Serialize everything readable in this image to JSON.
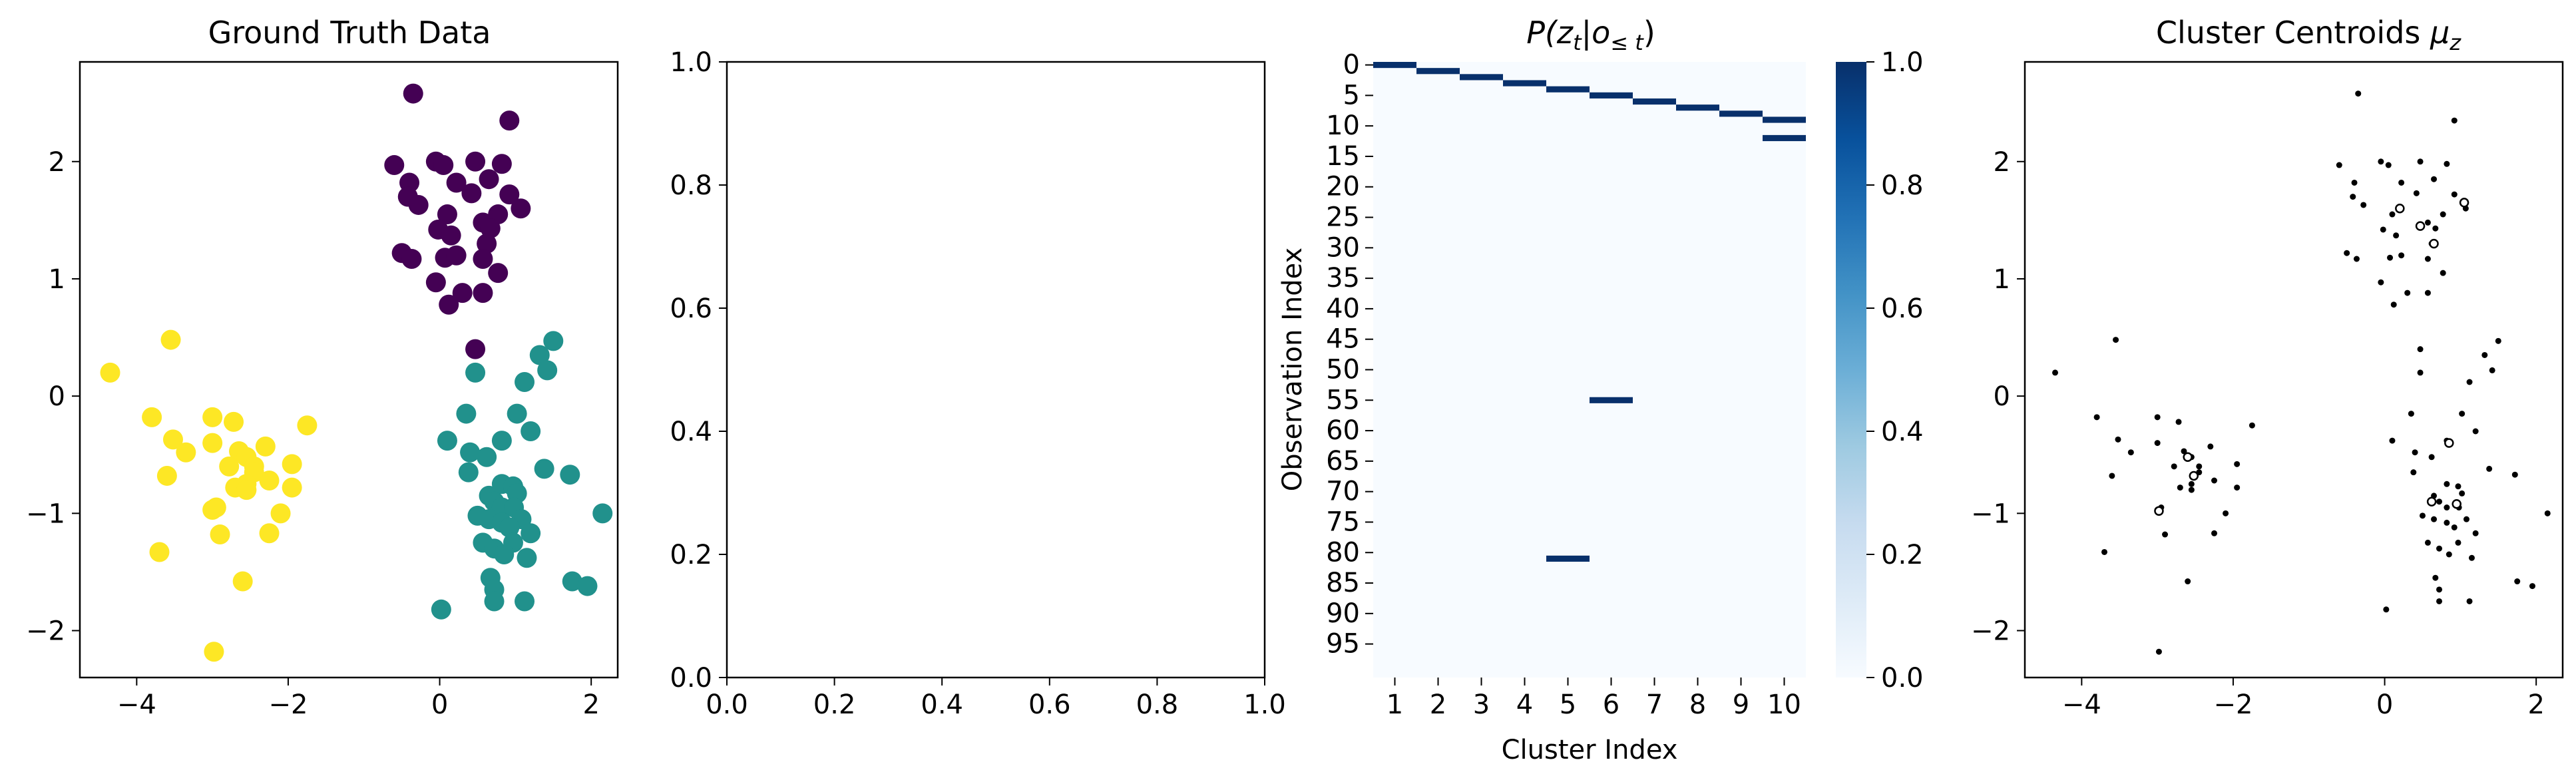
{
  "figure": {
    "background": "#ffffff"
  },
  "chart_data": [
    {
      "type": "scatter",
      "title": "Ground Truth Data",
      "xlabel": "",
      "ylabel": "",
      "xlim": [
        -4.75,
        2.35
      ],
      "ylim": [
        -2.4,
        2.85
      ],
      "xticks": [
        -4,
        -2,
        0,
        2
      ],
      "xtick_labels": [
        "−4",
        "−2",
        "0",
        "2"
      ],
      "yticks": [
        -2,
        -1,
        0,
        1,
        2
      ],
      "ytick_labels": [
        "−2",
        "−1",
        "0",
        "1",
        "2"
      ],
      "grid": false,
      "series": [
        {
          "color": "#440154",
          "points": [
            [
              -0.35,
              2.58
            ],
            [
              0.92,
              2.35
            ],
            [
              -0.6,
              1.97
            ],
            [
              -0.05,
              2.0
            ],
            [
              0.05,
              1.97
            ],
            [
              0.47,
              2.0
            ],
            [
              0.82,
              1.98
            ],
            [
              -0.4,
              1.82
            ],
            [
              0.22,
              1.82
            ],
            [
              0.65,
              1.85
            ],
            [
              -0.42,
              1.7
            ],
            [
              -0.28,
              1.63
            ],
            [
              0.42,
              1.73
            ],
            [
              0.92,
              1.72
            ],
            [
              0.1,
              1.55
            ],
            [
              0.77,
              1.55
            ],
            [
              1.07,
              1.6
            ],
            [
              0.57,
              1.48
            ],
            [
              0.67,
              1.43
            ],
            [
              -0.02,
              1.42
            ],
            [
              0.15,
              1.37
            ],
            [
              0.62,
              1.3
            ],
            [
              -0.5,
              1.22
            ],
            [
              -0.37,
              1.17
            ],
            [
              0.07,
              1.18
            ],
            [
              0.22,
              1.2
            ],
            [
              0.57,
              1.17
            ],
            [
              0.77,
              1.05
            ],
            [
              -0.05,
              0.97
            ],
            [
              0.3,
              0.88
            ],
            [
              0.57,
              0.88
            ],
            [
              0.12,
              0.78
            ],
            [
              0.47,
              0.4
            ]
          ]
        },
        {
          "color": "#21918c",
          "points": [
            [
              1.5,
              0.47
            ],
            [
              1.32,
              0.35
            ],
            [
              1.42,
              0.22
            ],
            [
              0.47,
              0.2
            ],
            [
              1.12,
              0.12
            ],
            [
              0.35,
              -0.15
            ],
            [
              1.02,
              -0.15
            ],
            [
              1.2,
              -0.3
            ],
            [
              0.1,
              -0.38
            ],
            [
              0.82,
              -0.38
            ],
            [
              0.4,
              -0.48
            ],
            [
              0.62,
              -0.52
            ],
            [
              1.38,
              -0.62
            ],
            [
              1.72,
              -0.67
            ],
            [
              0.38,
              -0.65
            ],
            [
              0.82,
              -0.75
            ],
            [
              0.97,
              -0.77
            ],
            [
              0.65,
              -0.85
            ],
            [
              1.02,
              -0.83
            ],
            [
              0.72,
              -0.9
            ],
            [
              0.82,
              -0.95
            ],
            [
              2.15,
              -1.0
            ],
            [
              0.98,
              -0.95
            ],
            [
              0.5,
              -1.02
            ],
            [
              0.65,
              -1.05
            ],
            [
              1.08,
              -1.05
            ],
            [
              0.82,
              -1.08
            ],
            [
              0.92,
              -1.12
            ],
            [
              0.57,
              -1.25
            ],
            [
              1.2,
              -1.17
            ],
            [
              0.97,
              -1.25
            ],
            [
              0.72,
              -1.3
            ],
            [
              0.85,
              -1.35
            ],
            [
              1.15,
              -1.38
            ],
            [
              0.67,
              -1.55
            ],
            [
              1.75,
              -1.58
            ],
            [
              1.95,
              -1.62
            ],
            [
              0.72,
              -1.65
            ],
            [
              1.12,
              -1.75
            ],
            [
              0.72,
              -1.75
            ],
            [
              0.02,
              -1.82
            ]
          ]
        },
        {
          "color": "#fde725",
          "points": [
            [
              -3.55,
              0.48
            ],
            [
              -4.35,
              0.2
            ],
            [
              -3.8,
              -0.18
            ],
            [
              -3.0,
              -0.18
            ],
            [
              -2.72,
              -0.22
            ],
            [
              -1.75,
              -0.25
            ],
            [
              -3.52,
              -0.37
            ],
            [
              -3.0,
              -0.4
            ],
            [
              -2.3,
              -0.43
            ],
            [
              -3.35,
              -0.48
            ],
            [
              -2.65,
              -0.47
            ],
            [
              -2.55,
              -0.52
            ],
            [
              -1.95,
              -0.58
            ],
            [
              -2.45,
              -0.6
            ],
            [
              -2.78,
              -0.6
            ],
            [
              -3.6,
              -0.68
            ],
            [
              -2.45,
              -0.65
            ],
            [
              -2.25,
              -0.72
            ],
            [
              -2.55,
              -0.75
            ],
            [
              -2.7,
              -0.78
            ],
            [
              -2.55,
              -0.8
            ],
            [
              -1.95,
              -0.78
            ],
            [
              -3.0,
              -0.97
            ],
            [
              -2.95,
              -0.95
            ],
            [
              -2.1,
              -1.0
            ],
            [
              -2.9,
              -1.18
            ],
            [
              -2.25,
              -1.17
            ],
            [
              -3.7,
              -1.33
            ],
            [
              -2.6,
              -1.58
            ],
            [
              -2.98,
              -2.18
            ]
          ]
        }
      ]
    },
    {
      "type": "scatter",
      "title": "",
      "xlim": [
        0,
        1
      ],
      "ylim": [
        0,
        1
      ],
      "xticks": [
        0,
        0.2,
        0.4,
        0.6,
        0.8,
        1.0
      ],
      "xtick_labels": [
        "0.0",
        "0.2",
        "0.4",
        "0.6",
        "0.8",
        "1.0"
      ],
      "yticks": [
        0,
        0.2,
        0.4,
        0.6,
        0.8,
        1.0
      ],
      "ytick_labels": [
        "0.0",
        "0.2",
        "0.4",
        "0.6",
        "0.8",
        "1.0"
      ],
      "series": []
    },
    {
      "type": "heatmap",
      "title": "P(zₜ|o≤ₜ)",
      "title_parts": {
        "p": "P(",
        "z": "z",
        "sub_t": "t",
        "bar": "|",
        "o": "o",
        "sub_le_t": "≤ t",
        "close": ")"
      },
      "xlabel": "Cluster Index",
      "ylabel": "Observation Index",
      "x_categories": [
        "1",
        "2",
        "3",
        "4",
        "5",
        "6",
        "7",
        "8",
        "9",
        "10"
      ],
      "y_tick_labels": [
        "0",
        "5",
        "10",
        "15",
        "20",
        "25",
        "30",
        "35",
        "40",
        "45",
        "50",
        "55",
        "60",
        "65",
        "70",
        "75",
        "80",
        "85",
        "90",
        "95"
      ],
      "n_rows": 101,
      "colormap": "Blues",
      "color_min": "#f7fbff",
      "color_max": "#08306b",
      "colorbar_ticks": [
        0.0,
        0.2,
        0.4,
        0.6,
        0.8,
        1.0
      ],
      "colorbar_tick_labels": [
        "0.0",
        "0.2",
        "0.4",
        "0.6",
        "0.8",
        "1.0"
      ],
      "nonzero_cells": [
        {
          "row": 0,
          "cluster": 1,
          "value": 1.0
        },
        {
          "row": 1,
          "cluster": 2,
          "value": 1.0
        },
        {
          "row": 2,
          "cluster": 3,
          "value": 1.0
        },
        {
          "row": 3,
          "cluster": 4,
          "value": 1.0
        },
        {
          "row": 4,
          "cluster": 5,
          "value": 1.0
        },
        {
          "row": 5,
          "cluster": 6,
          "value": 1.0
        },
        {
          "row": 6,
          "cluster": 7,
          "value": 1.0
        },
        {
          "row": 7,
          "cluster": 8,
          "value": 1.0
        },
        {
          "row": 8,
          "cluster": 9,
          "value": 1.0
        },
        {
          "row": 9,
          "cluster": 10,
          "value": 1.0
        },
        {
          "row": 12,
          "cluster": 10,
          "value": 1.0
        },
        {
          "row": 55,
          "cluster": 6,
          "value": 1.0
        },
        {
          "row": 81,
          "cluster": 5,
          "value": 1.0
        }
      ]
    },
    {
      "type": "scatter",
      "title": "Cluster Centroids ",
      "title_symbol": "μ",
      "title_subscript": "z",
      "xlim": [
        -4.75,
        2.35
      ],
      "ylim": [
        -2.4,
        2.85
      ],
      "xticks": [
        -4,
        -2,
        0,
        2
      ],
      "xtick_labels": [
        "−4",
        "−2",
        "0",
        "2"
      ],
      "yticks": [
        -2,
        -1,
        0,
        1,
        2
      ],
      "ytick_labels": [
        "−2",
        "−1",
        "0",
        "1",
        "2"
      ],
      "marker_color": "#000000",
      "centroids": [
        [
          -2.6,
          -0.52
        ],
        [
          -2.98,
          -0.98
        ],
        [
          -2.52,
          -0.68
        ],
        [
          0.47,
          1.45
        ],
        [
          0.65,
          1.3
        ],
        [
          1.05,
          1.65
        ],
        [
          0.85,
          -0.4
        ],
        [
          0.62,
          -0.9
        ],
        [
          0.95,
          -0.92
        ],
        [
          0.2,
          1.6
        ]
      ]
    }
  ]
}
